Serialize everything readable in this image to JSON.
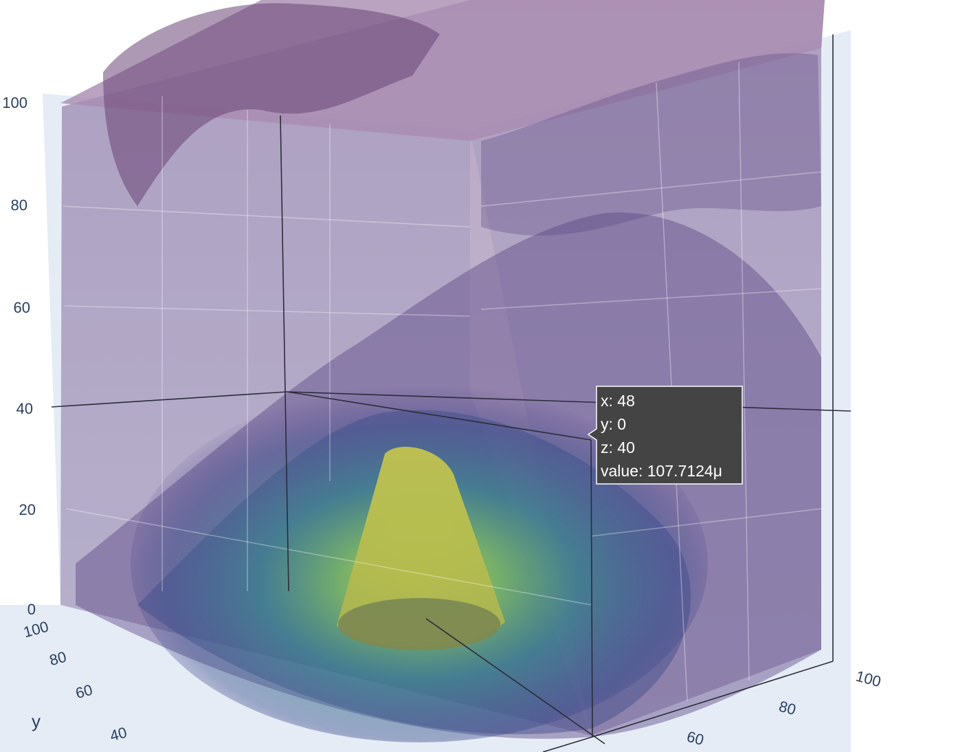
{
  "chart_data": {
    "type": "volume",
    "title": "",
    "colorscale": "Viridis",
    "colors": {
      "background": "#ffffff",
      "pane": "#e5ecf6",
      "grid": "#ffffff",
      "tick_text": "#2a3f5f",
      "hover_bg": "#444444",
      "hover_text": "#ffffff",
      "viridis_low": "#440154",
      "viridis_mid": "#21918c",
      "viridis_high": "#fde725"
    },
    "axes": {
      "x": {
        "title": "",
        "range": [
          0,
          100
        ],
        "ticks": [
          "60",
          "80",
          "100"
        ]
      },
      "y": {
        "title": "y",
        "range": [
          0,
          100
        ],
        "ticks": [
          "40",
          "60",
          "80",
          "100"
        ]
      },
      "z": {
        "title": "",
        "range": [
          0,
          100
        ],
        "ticks": [
          "0",
          "20",
          "40",
          "60",
          "80",
          "100"
        ]
      }
    },
    "grid": true,
    "legend": "none",
    "peak": {
      "x": 48,
      "y": 0,
      "z": 40,
      "description": "high-value plume near origin"
    },
    "hover": {
      "point": {
        "x": 48,
        "y": 0,
        "z": 40
      },
      "lines": [
        "x: 48",
        "y: 0",
        "z: 40",
        "value: 107.7124μ"
      ]
    }
  }
}
